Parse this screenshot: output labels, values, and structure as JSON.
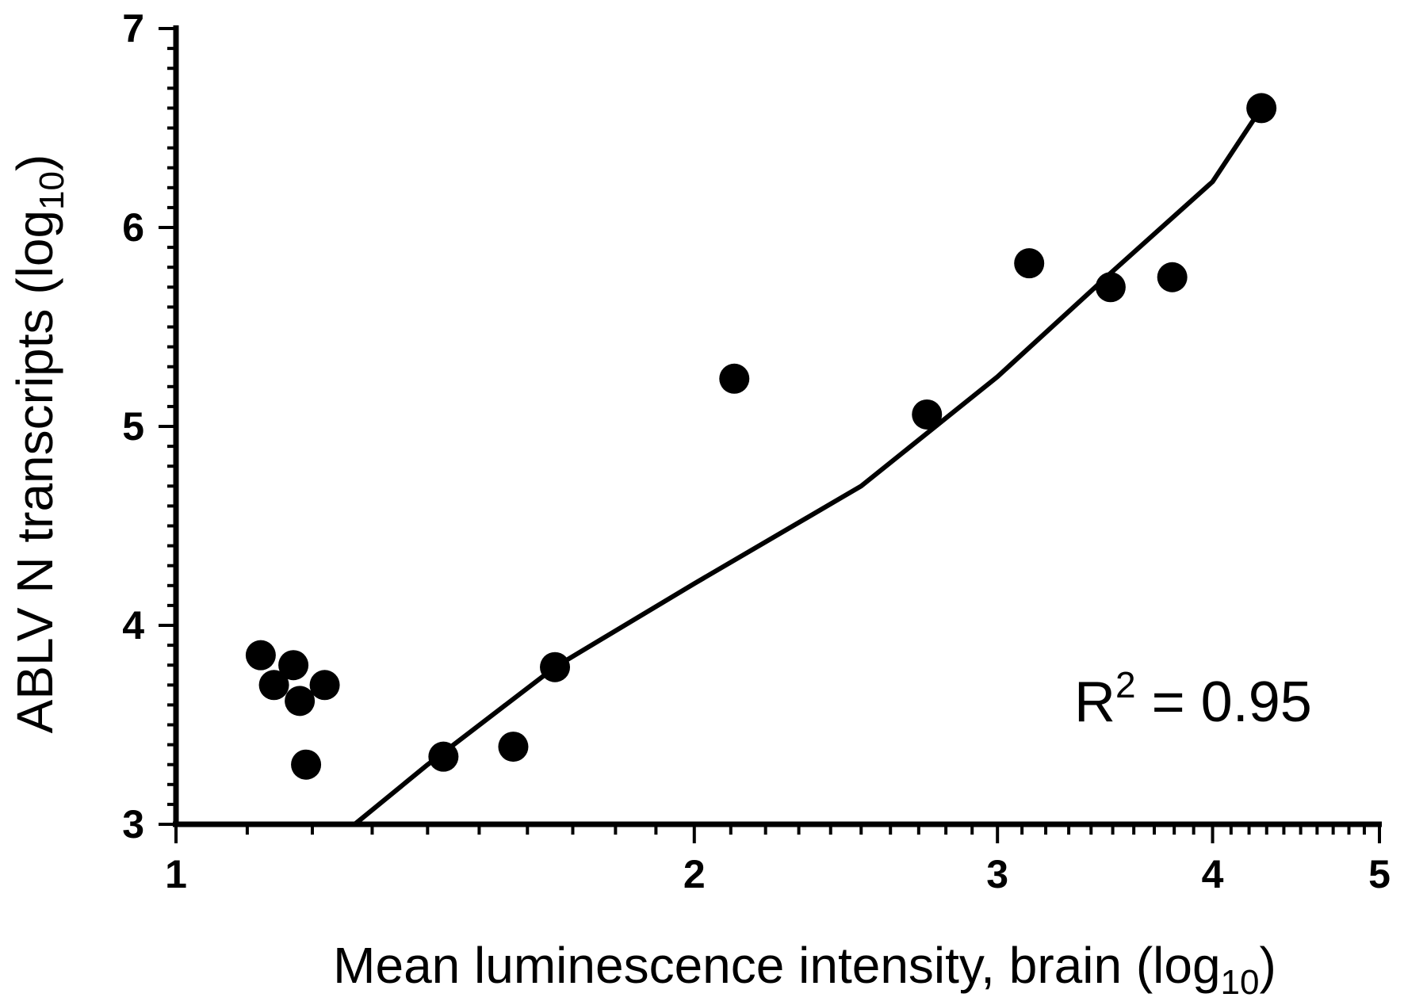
{
  "chart_data": {
    "type": "scatter",
    "title": "",
    "xlabel": {
      "text": "Mean luminescence intensity, brain (log",
      "subscript": "10",
      "suffix": ")"
    },
    "ylabel": {
      "text": "ABLV N transcripts (log",
      "subscript": "10",
      "suffix": ")"
    },
    "xlim": [
      1,
      5
    ],
    "ylim": [
      3,
      7
    ],
    "x_scale": "log",
    "x_ticks": [
      "1",
      "2",
      "3",
      "4",
      "5"
    ],
    "y_ticks": [
      "3",
      "4",
      "5",
      "6",
      "7"
    ],
    "grid": false,
    "legend": false,
    "annotation": {
      "base": "R",
      "superscript": "2",
      "rest": " = 0.95"
    },
    "series": [
      {
        "values": [
          {
            "x": 1.12,
            "y": 3.85
          },
          {
            "x": 1.17,
            "y": 3.8
          },
          {
            "x": 1.14,
            "y": 3.7
          },
          {
            "x": 1.22,
            "y": 3.7
          },
          {
            "x": 1.18,
            "y": 3.62
          },
          {
            "x": 1.19,
            "y": 3.3
          },
          {
            "x": 1.43,
            "y": 3.34
          },
          {
            "x": 1.57,
            "y": 3.39
          },
          {
            "x": 1.66,
            "y": 3.79
          },
          {
            "x": 2.11,
            "y": 5.24
          },
          {
            "x": 2.73,
            "y": 5.06
          },
          {
            "x": 3.13,
            "y": 5.82
          },
          {
            "x": 3.49,
            "y": 5.7
          },
          {
            "x": 3.79,
            "y": 5.75
          },
          {
            "x": 4.27,
            "y": 6.6
          }
        ]
      }
    ],
    "fit_line": {
      "type": "log-linear",
      "x_range": [
        1.27,
        4.27
      ],
      "points": [
        {
          "x": 1.27,
          "y": 2.98
        },
        {
          "x": 1.4,
          "y": 3.3
        },
        {
          "x": 1.66,
          "y": 3.79
        },
        {
          "x": 2.0,
          "y": 4.21
        },
        {
          "x": 2.5,
          "y": 4.7
        },
        {
          "x": 3.0,
          "y": 5.25
        },
        {
          "x": 3.5,
          "y": 5.78
        },
        {
          "x": 4.0,
          "y": 6.23
        },
        {
          "x": 4.27,
          "y": 6.6
        }
      ]
    },
    "colors": {
      "points": "#000000",
      "axes": "#000000",
      "fit_line": "#000000"
    }
  }
}
